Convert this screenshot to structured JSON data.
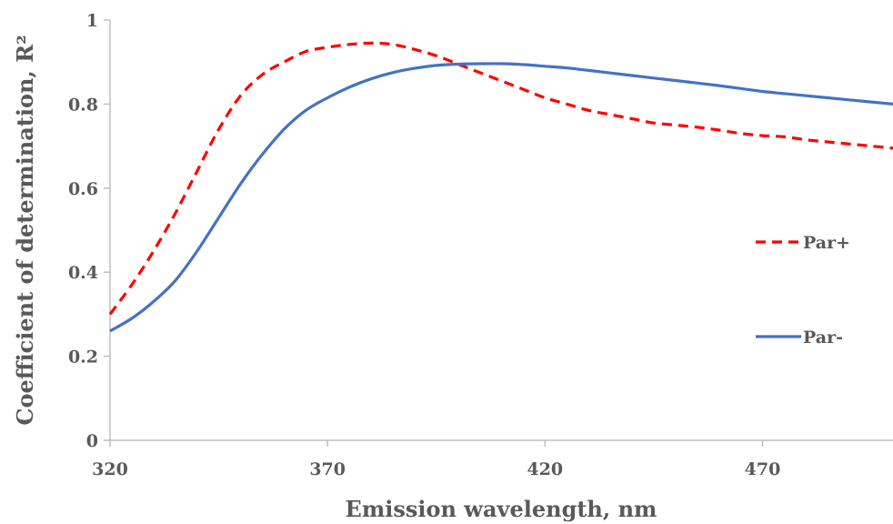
{
  "chart_data": {
    "type": "line",
    "xlabel": "Emission wavelength, nm",
    "ylabel": "Coefficient of determination, R²",
    "xlim": [
      320,
      500
    ],
    "ylim": [
      0,
      1
    ],
    "xticks": [
      "320",
      "370",
      "420",
      "470"
    ],
    "yticks": [
      "0",
      "0.2",
      "0.4",
      "0.6",
      "0.8",
      "1"
    ],
    "grid": false,
    "legend_position": "right",
    "series": [
      {
        "name": "Par+",
        "color": "#ff0000",
        "dash": "dashed",
        "x": [
          320,
          325,
          330,
          335,
          340,
          345,
          350,
          355,
          360,
          365,
          370,
          375,
          380,
          385,
          390,
          395,
          400,
          405,
          410,
          415,
          420,
          425,
          430,
          435,
          440,
          445,
          450,
          455,
          460,
          465,
          470,
          475,
          480,
          485,
          490,
          495,
          500
        ],
        "y": [
          0.3,
          0.37,
          0.45,
          0.54,
          0.64,
          0.74,
          0.82,
          0.87,
          0.9,
          0.925,
          0.935,
          0.942,
          0.945,
          0.942,
          0.93,
          0.915,
          0.895,
          0.875,
          0.855,
          0.835,
          0.815,
          0.8,
          0.785,
          0.775,
          0.765,
          0.755,
          0.75,
          0.745,
          0.738,
          0.73,
          0.725,
          0.722,
          0.715,
          0.71,
          0.705,
          0.7,
          0.695
        ]
      },
      {
        "name": "Par-",
        "color": "#4472c4",
        "dash": "solid",
        "x": [
          320,
          325,
          330,
          335,
          340,
          345,
          350,
          355,
          360,
          365,
          370,
          375,
          380,
          385,
          390,
          395,
          400,
          405,
          410,
          415,
          420,
          425,
          430,
          435,
          440,
          445,
          450,
          455,
          460,
          465,
          470,
          475,
          480,
          485,
          490,
          495,
          500
        ],
        "y": [
          0.26,
          0.29,
          0.33,
          0.38,
          0.45,
          0.53,
          0.61,
          0.68,
          0.74,
          0.785,
          0.815,
          0.84,
          0.86,
          0.875,
          0.885,
          0.892,
          0.895,
          0.896,
          0.896,
          0.894,
          0.89,
          0.886,
          0.88,
          0.874,
          0.868,
          0.862,
          0.856,
          0.85,
          0.844,
          0.837,
          0.83,
          0.825,
          0.82,
          0.815,
          0.81,
          0.805,
          0.8
        ]
      }
    ]
  }
}
